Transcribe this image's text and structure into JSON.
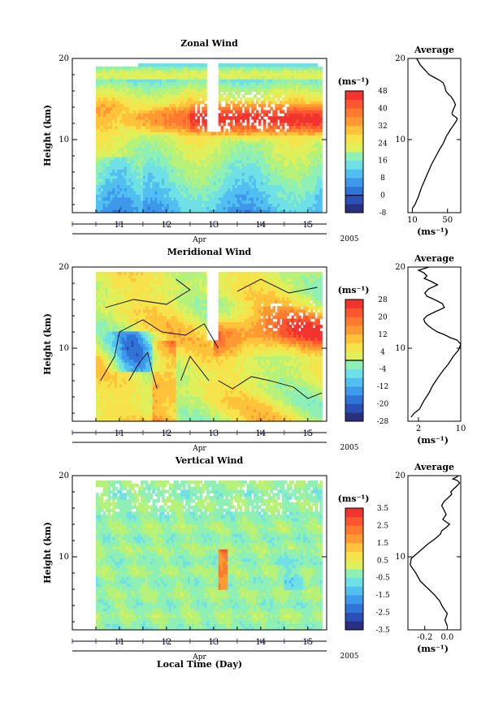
{
  "figure": {
    "xlabel": "Local Time (Day)",
    "month_label": "Apr",
    "year_label": "2005",
    "colorbar_unit": "(ms⁻¹)",
    "profile_unit": "(ms⁻¹)",
    "profile_title": "Average",
    "ylabel": "Height (km)"
  },
  "chart_data": [
    {
      "type": "heatmap",
      "title": "Zonal Wind",
      "ylabel": "Height (km)",
      "xlim": [
        10.0,
        15.4
      ],
      "ylim": [
        1,
        20
      ],
      "x_ticks": [
        11,
        12,
        13,
        14,
        15
      ],
      "x_tick_labels": [
        "11",
        "12",
        "13",
        "14",
        "15"
      ],
      "y_ticks": [
        10,
        20
      ],
      "y_tick_labels": [
        "10",
        "20"
      ],
      "colorbar": {
        "levels": [
          -8,
          -4,
          0,
          4,
          8,
          12,
          16,
          20,
          24,
          28,
          32,
          36,
          40,
          44,
          48
        ],
        "tick_values": [
          -8,
          0,
          8,
          16,
          24,
          32,
          40,
          48
        ],
        "tick_labels": [
          "-8",
          "0",
          "8",
          "16",
          "24",
          "32",
          "40",
          "48"
        ],
        "zero_line": 0
      },
      "data_range": [
        -8,
        50
      ],
      "coverage_x": [
        10.5,
        15.3
      ],
      "gap_x": [
        12.6,
        13.1
      ]
    },
    {
      "type": "heatmap",
      "title": "Meridional Wind",
      "ylabel": "Height (km)",
      "xlim": [
        10.0,
        15.4
      ],
      "ylim": [
        1,
        20
      ],
      "x_ticks": [
        11,
        12,
        13,
        14,
        15
      ],
      "x_tick_labels": [
        "11",
        "12",
        "13",
        "14",
        "15"
      ],
      "y_ticks": [
        10,
        20
      ],
      "y_tick_labels": [
        "10",
        "20"
      ],
      "colorbar": {
        "levels": [
          -28,
          -24,
          -20,
          -16,
          -12,
          -8,
          -4,
          0,
          4,
          8,
          12,
          16,
          20,
          24,
          28
        ],
        "tick_values": [
          -28,
          -20,
          -12,
          -4,
          4,
          12,
          20,
          28
        ],
        "tick_labels": [
          "-28",
          "-20",
          "-12",
          "-4",
          "4",
          "12",
          "20",
          "28"
        ],
        "zero_line": 0
      },
      "contour_level": 0,
      "data_range": [
        -28,
        30
      ],
      "coverage_x": [
        10.5,
        15.3
      ],
      "gap_x": [
        12.6,
        13.1
      ]
    },
    {
      "type": "heatmap",
      "title": "Vertical Wind",
      "ylabel": "Height (km)",
      "xlabel": "Local Time (Day)",
      "xlim": [
        10.0,
        15.4
      ],
      "ylim": [
        1,
        20
      ],
      "x_ticks": [
        11,
        12,
        13,
        14,
        15
      ],
      "x_tick_labels": [
        "11",
        "12",
        "13",
        "14",
        "15"
      ],
      "y_ticks": [
        10,
        20
      ],
      "y_tick_labels": [
        "10",
        "20"
      ],
      "colorbar": {
        "levels": [
          -3.5,
          -3.0,
          -2.5,
          -2.0,
          -1.5,
          -1.0,
          -0.5,
          0.0,
          0.5,
          1.0,
          1.5,
          2.0,
          2.5,
          3.0,
          3.5
        ],
        "tick_values": [
          -3.5,
          -2.5,
          -1.5,
          -0.5,
          0.5,
          1.5,
          2.5,
          3.5
        ],
        "tick_labels": [
          "-3.5",
          "-2.5",
          "-1.5",
          "-0.5",
          "0.5",
          "1.5",
          "2.5",
          "3.5"
        ]
      },
      "data_range": [
        -3.5,
        4.0
      ],
      "coverage_x": [
        10.5,
        15.3
      ]
    },
    {
      "type": "line",
      "title": "Average",
      "xlabel": "(ms⁻¹)",
      "xlim": [
        5,
        65
      ],
      "ylim": [
        1,
        20
      ],
      "x_ticks": [
        10,
        50
      ],
      "x_tick_labels": [
        "10",
        "50"
      ],
      "y_ticks": [
        10,
        20
      ],
      "y_tick_labels": [
        "10",
        "20"
      ],
      "x": [
        10,
        13,
        17,
        20,
        24,
        28,
        32,
        37,
        41,
        45,
        47,
        49,
        51,
        53,
        55,
        57,
        60,
        61,
        59,
        56,
        55,
        57,
        59,
        57,
        54,
        51,
        48,
        47,
        45,
        41,
        36,
        29,
        25,
        19,
        15
      ],
      "y": [
        1.5,
        2.0,
        3.0,
        4.0,
        5.0,
        6.0,
        7.0,
        8.0,
        8.8,
        9.5,
        10.0,
        10.5,
        10.8,
        11.2,
        11.5,
        11.8,
        12.3,
        12.6,
        12.8,
        13.0,
        13.3,
        13.8,
        14.3,
        14.8,
        15.3,
        15.6,
        16.0,
        16.5,
        17.0,
        17.3,
        17.6,
        18.0,
        18.5,
        19.2,
        20.0
      ]
    },
    {
      "type": "line",
      "title": "Average",
      "xlabel": "(ms⁻¹)",
      "xlim": [
        0,
        10
      ],
      "ylim": [
        1,
        20
      ],
      "x_ticks": [
        2,
        10
      ],
      "x_tick_labels": [
        "2",
        "10"
      ],
      "y_ticks": [
        10,
        20
      ],
      "y_tick_labels": [
        "10",
        "20"
      ],
      "x": [
        0.6,
        1.2,
        2.2,
        3.0,
        4.0,
        4.6,
        5.6,
        6.6,
        7.6,
        8.6,
        9.6,
        10.0,
        9.3,
        8.0,
        6.8,
        5.6,
        4.6,
        3.8,
        3.2,
        3.0,
        3.6,
        5.2,
        6.9,
        6.5,
        5.0,
        3.6,
        3.2,
        3.9,
        5.6,
        4.5,
        3.1,
        3.6,
        3.0,
        2.0,
        4.0
      ],
      "y": [
        1.5,
        2.0,
        2.5,
        3.5,
        4.5,
        5.3,
        6.3,
        7.2,
        8.0,
        9.0,
        9.8,
        10.5,
        11.0,
        11.3,
        11.7,
        12.0,
        12.4,
        12.8,
        13.2,
        13.6,
        14.0,
        14.5,
        15.0,
        15.5,
        16.0,
        16.4,
        16.8,
        17.3,
        17.8,
        18.2,
        18.6,
        18.9,
        19.3,
        19.6,
        20.0
      ]
    },
    {
      "type": "line",
      "title": "Average",
      "xlabel": "(ms⁻¹)",
      "xlim": [
        -0.35,
        0.12
      ],
      "ylim": [
        1,
        20
      ],
      "x_ticks": [
        -0.2,
        0.0
      ],
      "x_tick_labels": [
        "-0.2",
        "0.0"
      ],
      "y_ticks": [
        10,
        20
      ],
      "y_tick_labels": [
        "10",
        "20"
      ],
      "x": [
        0.0,
        -0.02,
        0.0,
        -0.04,
        -0.07,
        -0.12,
        -0.18,
        -0.24,
        -0.28,
        -0.33,
        -0.32,
        -0.27,
        -0.22,
        -0.17,
        -0.11,
        -0.06,
        -0.05,
        -0.01,
        0.02,
        -0.04,
        -0.01,
        -0.03,
        -0.05,
        -0.03,
        0.01,
        0.04,
        0.03,
        0.06,
        0.09,
        0.11,
        0.09,
        0.05,
        0.08,
        0.1
      ],
      "y": [
        1.5,
        2.2,
        3.0,
        3.8,
        4.6,
        5.4,
        6.2,
        7.0,
        8.0,
        9.0,
        9.8,
        10.4,
        11.0,
        11.6,
        12.2,
        12.8,
        13.2,
        13.6,
        14.0,
        14.6,
        15.2,
        15.8,
        16.3,
        16.8,
        17.3,
        17.7,
        18.0,
        18.4,
        18.8,
        19.1,
        19.4,
        19.6,
        19.8,
        20.0
      ]
    }
  ]
}
